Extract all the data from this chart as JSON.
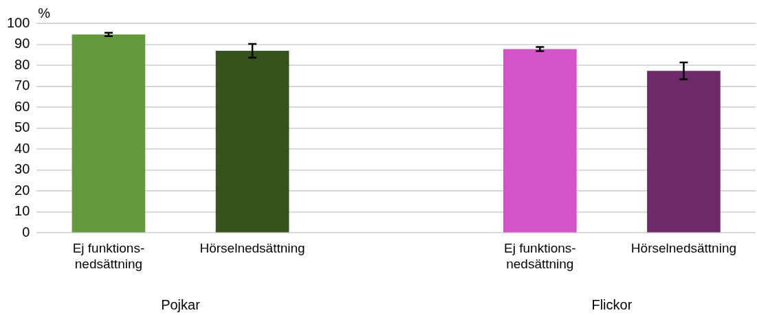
{
  "chart_data": {
    "type": "bar",
    "ylabel": "%",
    "categories": [
      "Ej funktions-\nnedsättning",
      "Hörselnedsättning",
      null,
      "Ej funktions-\nnedsättning",
      "Hörselnedsättning"
    ],
    "values": [
      94.7,
      86.9,
      null,
      87.7,
      77.3
    ],
    "colors": [
      "#629a3d",
      "#35521f",
      "#000000",
      "#d254c8",
      "#6e2a68"
    ],
    "errors": [
      0.8,
      3.3,
      null,
      1.0,
      4.0
    ],
    "ylim": [
      0,
      100
    ],
    "yticks": [
      0,
      10,
      20,
      30,
      40,
      50,
      60,
      70,
      80,
      90,
      100
    ],
    "grid": "y",
    "legend": false,
    "annotations": [
      "Pojkar",
      "Flickor"
    ]
  }
}
